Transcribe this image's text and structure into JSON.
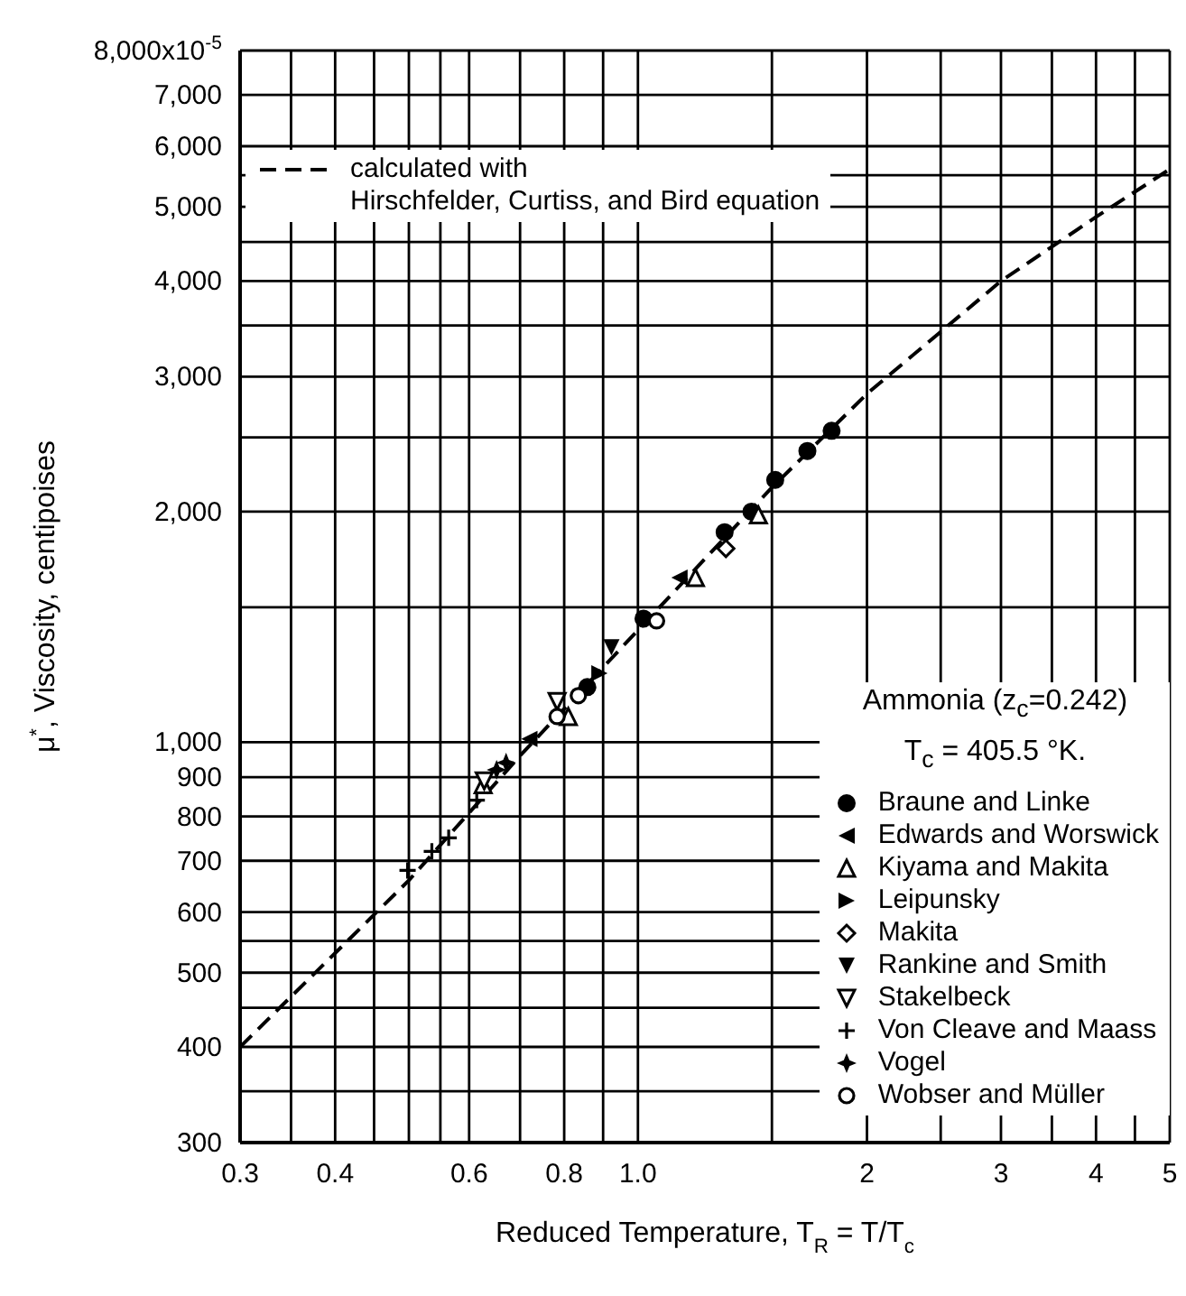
{
  "chart_data": {
    "type": "scatter",
    "xlabel": "Reduced Temperature, T$_{R}$ = T/T$_{c}$",
    "ylabel": "μ$^{*}$, Viscosity, centipoises",
    "annotations": [
      "Ammonia (z$_{c}$=0.242)",
      "T$_{c}$ = 405.5 °K."
    ],
    "log": "xy",
    "xlim": [
      0.3,
      5
    ],
    "xticks": [
      0.3,
      {
        "value": 0.35,
        "label": null
      },
      0.4,
      {
        "value": 0.45,
        "label": null
      },
      {
        "value": 0.5,
        "label": null
      },
      {
        "value": 0.55,
        "label": null
      },
      0.6,
      {
        "value": 0.7,
        "label": null
      },
      0.8,
      {
        "value": 0.9,
        "label": null
      },
      {
        "value": 1,
        "label": "1.0"
      },
      {
        "value": 1.5,
        "label": null
      },
      2,
      {
        "value": 2.5,
        "label": null
      },
      3,
      {
        "value": 3.5,
        "label": null
      },
      4,
      {
        "value": 4.5,
        "label": null
      },
      5
    ],
    "ylim": [
      300,
      8000
    ],
    "yticks": [
      300,
      {
        "value": 350,
        "label": null
      },
      400,
      {
        "value": 450,
        "label": null
      },
      500,
      {
        "value": 550,
        "label": null
      },
      600,
      700,
      800,
      900,
      {
        "value": 1000,
        "label": "1,000"
      },
      {
        "value": 1500,
        "label": null
      },
      {
        "value": 2000,
        "label": "2,000"
      },
      {
        "value": 2500,
        "label": null
      },
      {
        "value": 3000,
        "label": "3,000"
      },
      {
        "value": 3500,
        "label": null
      },
      {
        "value": 4000,
        "label": "4,000"
      },
      {
        "value": 4500,
        "label": null
      },
      {
        "value": 5000,
        "label": "5,000"
      },
      {
        "value": 5500,
        "label": null
      },
      {
        "value": 6000,
        "label": "6,000"
      },
      {
        "value": 7000,
        "label": "7,000"
      },
      {
        "value": 8000,
        "label": "8,000x10$^{-5}$"
      }
    ],
    "grid": true,
    "legend": "bottom right",
    "series": [
      {
        "name": "calculated with\nHirschfelder, Curtiss, and Bird equation",
        "type": "line",
        "line_style": "dashed",
        "marker": "none",
        "color": "#000000",
        "x": [
          0.3,
          0.5,
          0.7,
          1.0,
          1.5,
          2,
          3,
          4,
          5
        ],
        "values": [
          400,
          660,
          960,
          1400,
          2150,
          2850,
          4000,
          4850,
          5600
        ]
      },
      {
        "name": "Braune and Linke",
        "marker": "circle",
        "color": "#000000",
        "x": [
          0.858,
          1.017,
          1.3,
          1.41,
          1.515,
          1.67,
          1.797
        ],
        "values": [
          1180,
          1450,
          1880,
          2000,
          2200,
          2400,
          2550
        ]
      },
      {
        "name": "Edwards and Worswick",
        "marker": "triangle-left",
        "color": "#000000",
        "x": [
          0.72,
          1.134
        ],
        "values": [
          1010,
          1640
        ]
      },
      {
        "name": "Kiyama and Makita",
        "marker": "triangle-open",
        "color": "#000000",
        "x": [
          0.626,
          0.81,
          1.19,
          1.44
        ],
        "values": [
          880,
          1080,
          1640,
          1980
        ]
      },
      {
        "name": "Leipunsky",
        "marker": "triangle-right",
        "color": "#000000",
        "x": [
          0.89
        ],
        "values": [
          1230
        ]
      },
      {
        "name": "Makita",
        "marker": "diamond-open",
        "color": "#000000",
        "x": [
          1.305
        ],
        "values": [
          1790
        ]
      },
      {
        "name": "Rankine and Smith",
        "marker": "triangle-down",
        "color": "#000000",
        "x": [
          0.923
        ],
        "values": [
          1330
        ]
      },
      {
        "name": "Stakelbeck",
        "marker": "triangle-down-open",
        "color": "#000000",
        "x": [
          0.628,
          0.783
        ],
        "values": [
          890,
          1130
        ]
      },
      {
        "name": "Von Cleave and Maass",
        "marker": "cross",
        "color": "#000000",
        "x": [
          0.498,
          0.536,
          0.564,
          0.614
        ],
        "values": [
          680,
          720,
          750,
          840
        ]
      },
      {
        "name": "Vogel",
        "marker": "star",
        "color": "#000000",
        "x": [
          0.652,
          0.671
        ],
        "values": [
          920,
          940
        ]
      },
      {
        "name": "Wobser and Müller",
        "marker": "circle-open",
        "color": "#000000",
        "x": [
          0.783,
          0.835,
          1.058
        ],
        "values": [
          1080,
          1150,
          1440
        ]
      }
    ]
  }
}
